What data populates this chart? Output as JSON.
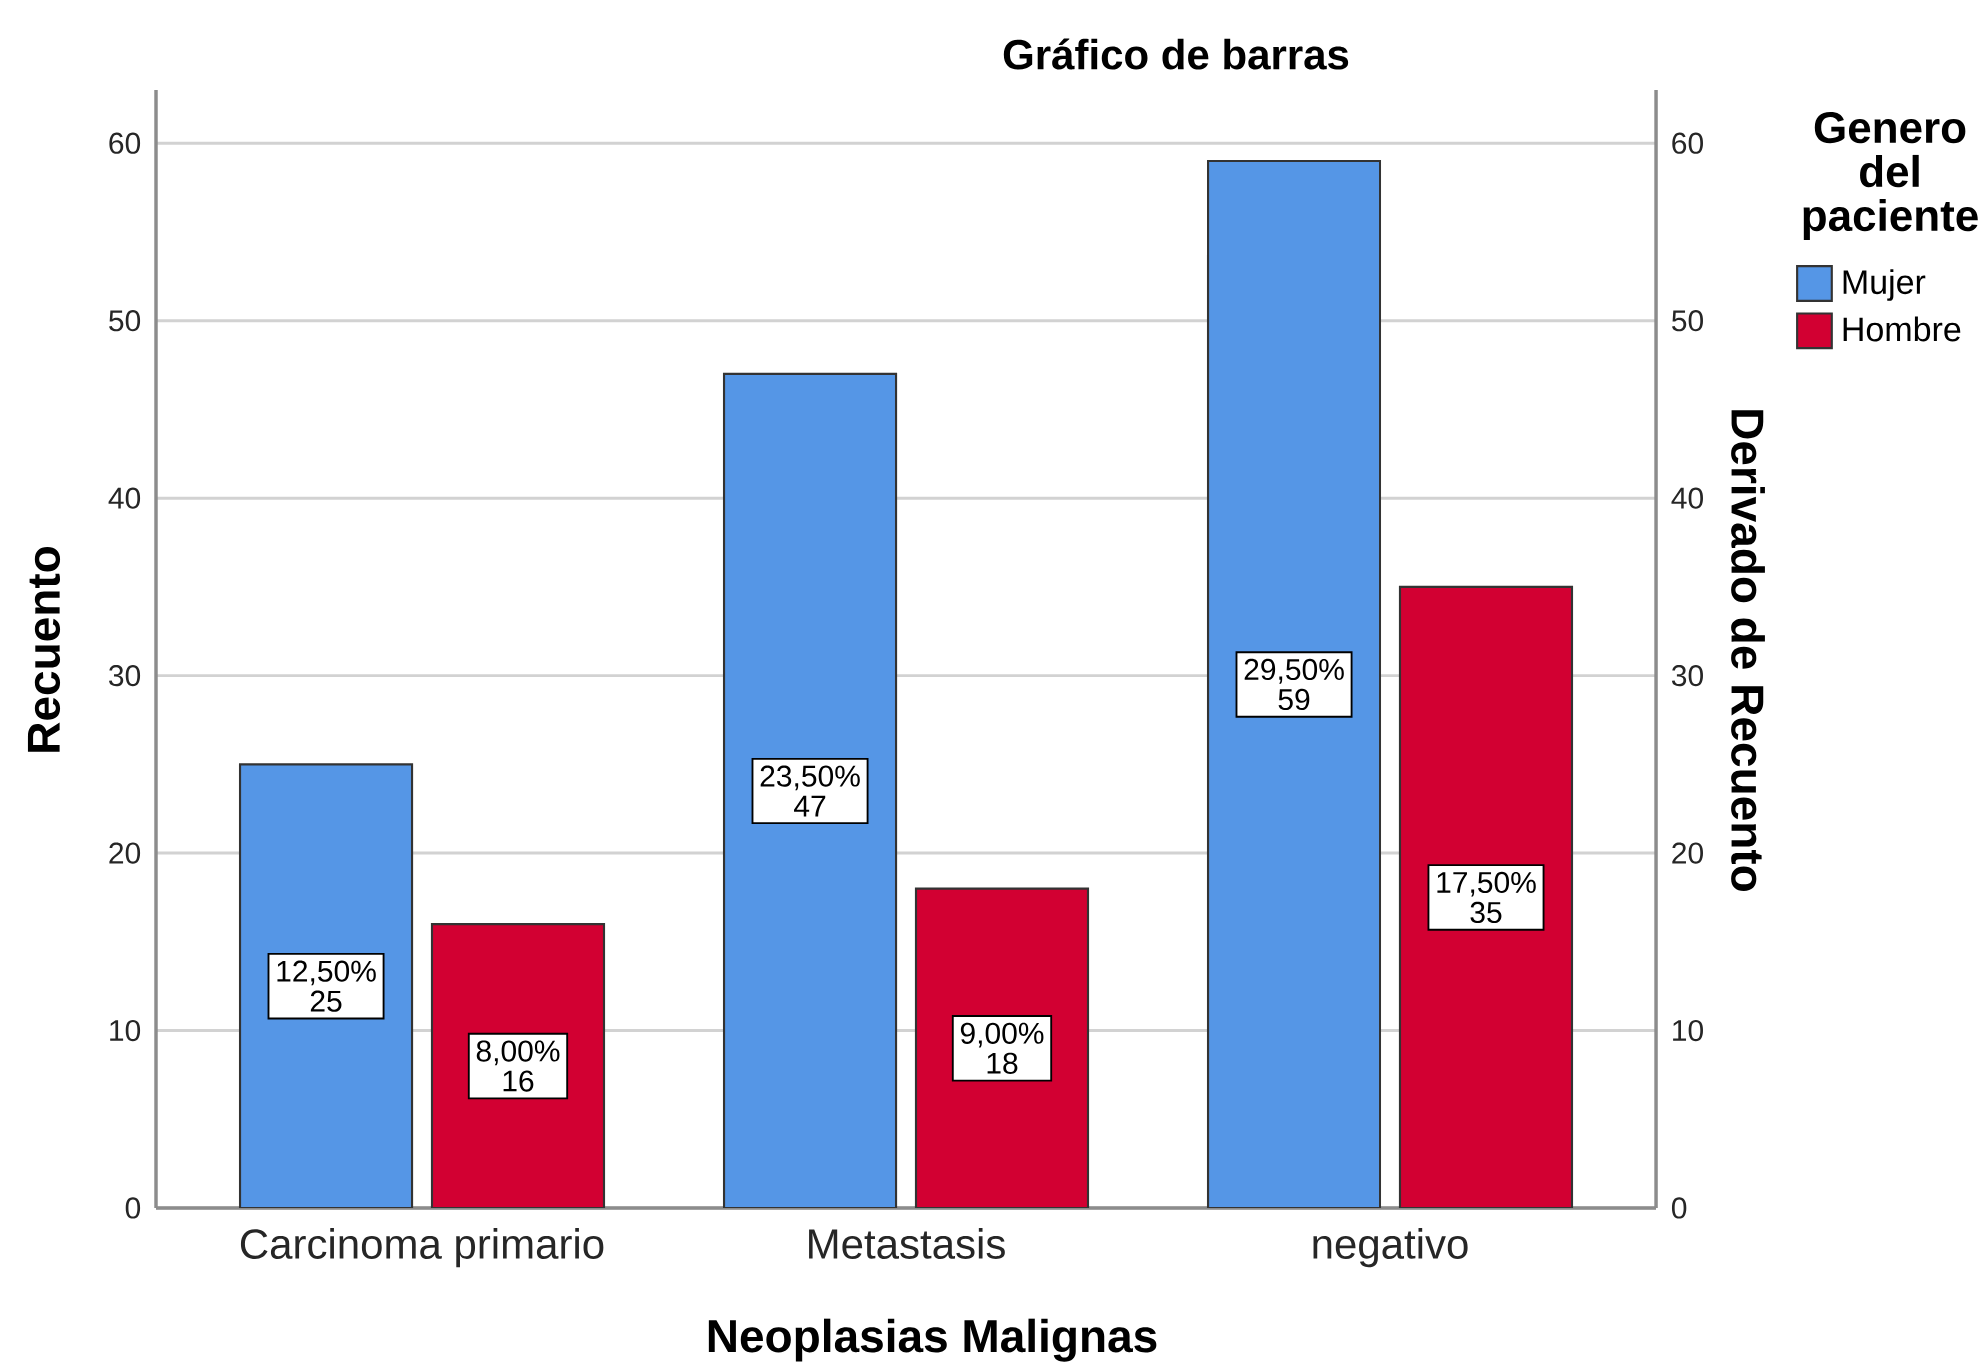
{
  "chart_data": {
    "type": "bar",
    "title": "Gráfico de barras",
    "xlabel": "Neoplasias Malignas",
    "ylabel": "Recuento",
    "y2label": "Derivado de Recuento",
    "legend_title": "Genero del paciente",
    "categories": [
      "Carcinoma primario",
      "Metastasis",
      "negativo"
    ],
    "series": [
      {
        "name": "Mujer",
        "color": "#5596e6",
        "values": [
          25,
          47,
          59
        ],
        "value_labels": [
          "12,50% 25",
          "23,50% 47",
          "29,50% 59"
        ]
      },
      {
        "name": "Hombre",
        "color": "#d20032",
        "values": [
          16,
          18,
          35
        ],
        "value_labels": [
          "8,00% 16",
          "9,00% 18",
          "17,50% 35"
        ]
      }
    ],
    "ylim": [
      0,
      63
    ],
    "yticks": [
      0,
      10,
      20,
      30,
      40,
      50,
      60
    ],
    "y2lim": [
      0,
      63
    ],
    "y2ticks": [
      0,
      10,
      20,
      30,
      40,
      50,
      60
    ],
    "grid": "y",
    "legend": "right"
  }
}
